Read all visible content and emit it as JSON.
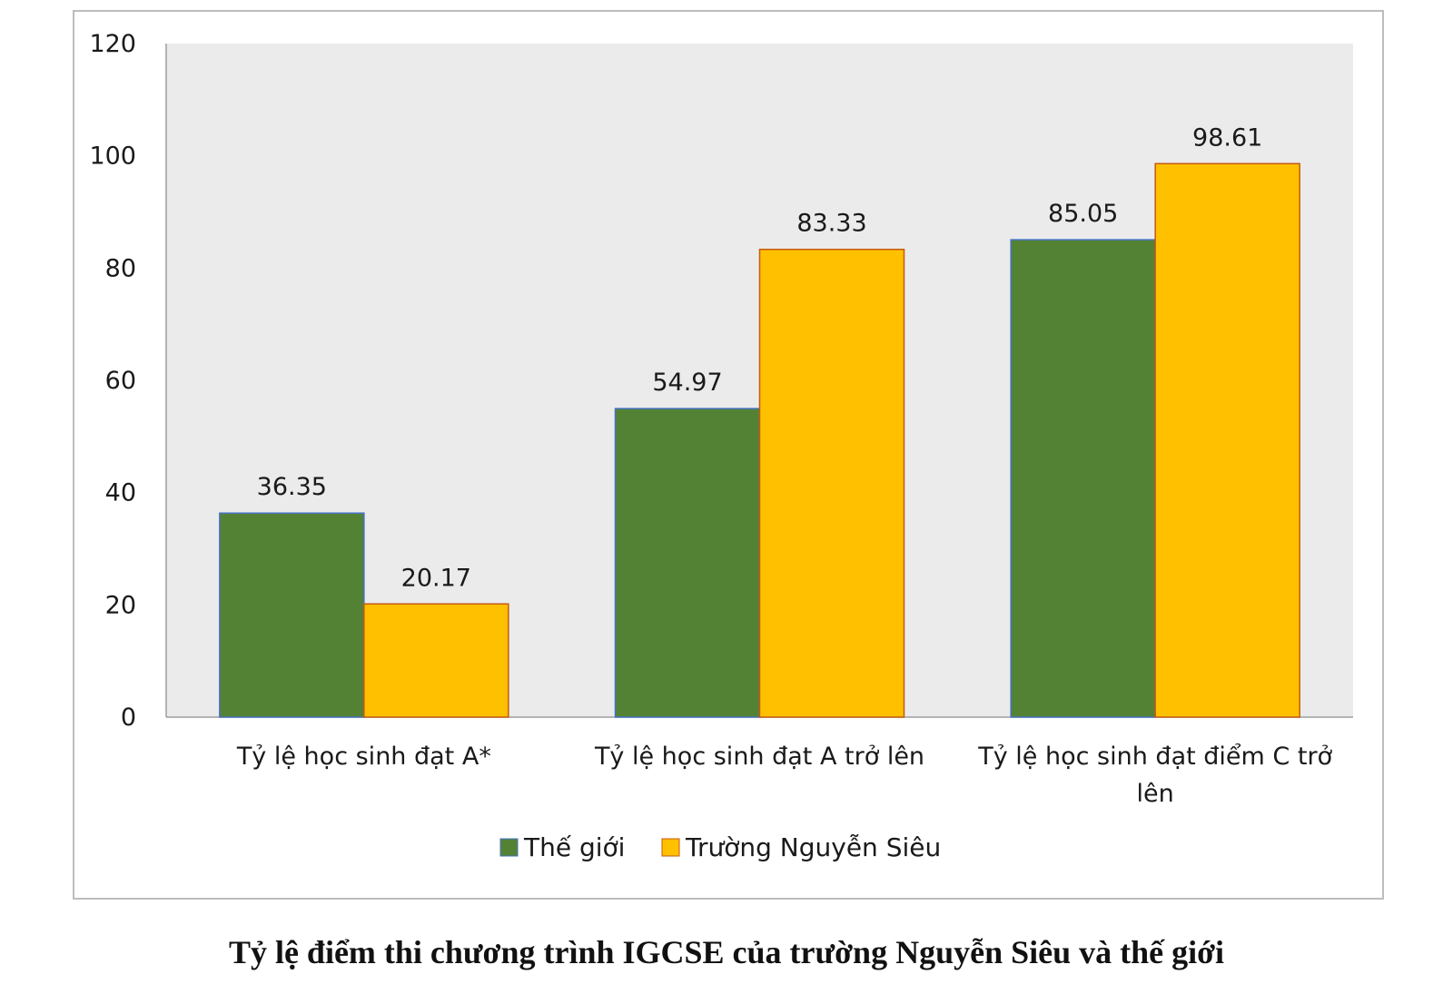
{
  "caption": "Tỷ lệ điểm thi chương trình IGCSE của trường Nguyễn Siêu và thế giới",
  "chart_data": {
    "type": "bar",
    "title": "",
    "xlabel": "",
    "ylabel": "",
    "ylim": [
      0,
      120
    ],
    "yticks": [
      0,
      20,
      40,
      60,
      80,
      100,
      120
    ],
    "categories": [
      [
        "Tỷ lệ học sinh đạt A*"
      ],
      [
        "Tỷ lệ học sinh đạt A trở lên"
      ],
      [
        "Tỷ lệ học sinh đạt điểm C trở",
        "lên"
      ]
    ],
    "series": [
      {
        "name": "Thế giới",
        "color": "#548235",
        "values": [
          36.35,
          54.97,
          85.05
        ]
      },
      {
        "name": "Trường Nguyễn Siêu",
        "color": "#FFC000",
        "values": [
          20.17,
          83.33,
          98.61
        ]
      }
    ],
    "grid": false,
    "plot_background": "#EBEBEB",
    "legend_position": "bottom"
  }
}
